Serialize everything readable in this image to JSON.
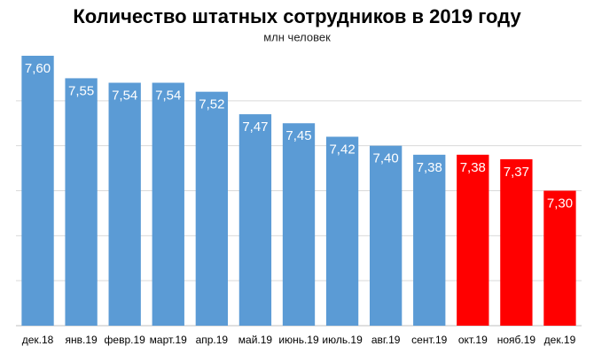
{
  "chart_data": {
    "type": "bar",
    "title": "Количество штатных сотрудников в 2019 году",
    "subtitle": "млн человек",
    "categories": [
      "дек.18",
      "янв.19",
      "февр.19",
      "март.19",
      "апр.19",
      "май.19",
      "июнь.19",
      "июль.19",
      "авг.19",
      "сент.19",
      "окт.19",
      "нояб.19",
      "дек.19"
    ],
    "values": [
      7.6,
      7.55,
      7.54,
      7.54,
      7.52,
      7.47,
      7.45,
      7.42,
      7.4,
      7.38,
      7.38,
      7.37,
      7.3
    ],
    "value_labels": [
      "7,60",
      "7,55",
      "7,54",
      "7,54",
      "7,52",
      "7,47",
      "7,45",
      "7,42",
      "7,40",
      "7,38",
      "7,38",
      "7,37",
      "7,30"
    ],
    "colors": [
      "#5b9bd5",
      "#5b9bd5",
      "#5b9bd5",
      "#5b9bd5",
      "#5b9bd5",
      "#5b9bd5",
      "#5b9bd5",
      "#5b9bd5",
      "#5b9bd5",
      "#5b9bd5",
      "#ff0000",
      "#ff0000",
      "#ff0000"
    ],
    "ylim": [
      7.0,
      7.6
    ],
    "ygrid": [
      7.1,
      7.2,
      7.3,
      7.4,
      7.5
    ],
    "grid": true
  }
}
